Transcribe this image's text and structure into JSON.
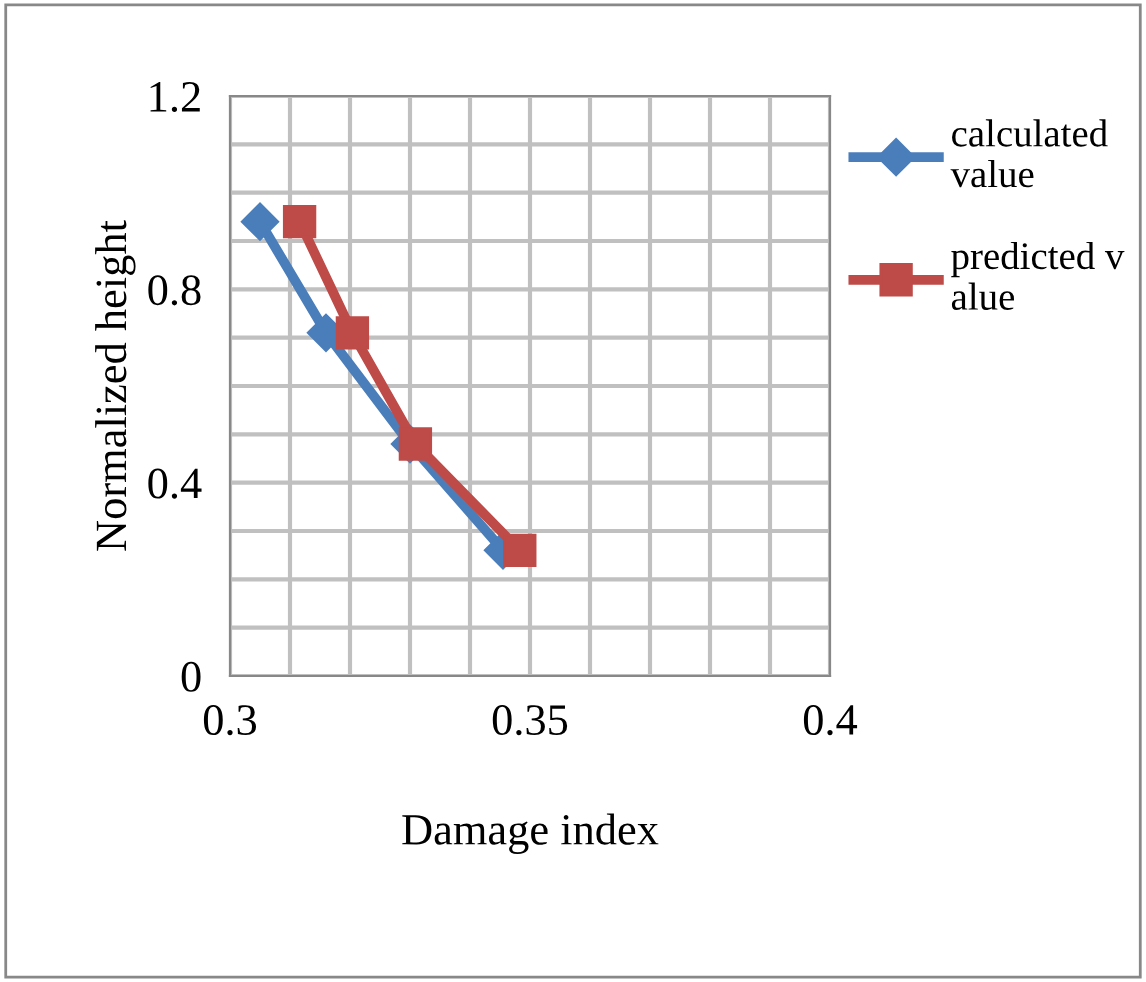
{
  "chart_data": {
    "type": "line",
    "xlabel": "Damage index",
    "ylabel": "Normalized height",
    "xlim": [
      0.3,
      0.4
    ],
    "ylim": [
      0,
      1.2
    ],
    "xticks": [
      0.3,
      {
        "value": 0.31,
        "label": null
      },
      {
        "value": 0.32,
        "label": null
      },
      {
        "value": 0.33,
        "label": null
      },
      {
        "value": 0.34,
        "label": null
      },
      0.35,
      {
        "value": 0.36,
        "label": null
      },
      {
        "value": 0.37,
        "label": null
      },
      {
        "value": 0.38,
        "label": null
      },
      {
        "value": 0.39,
        "label": null
      },
      0.4
    ],
    "yticks": [
      0,
      {
        "value": 0.1,
        "label": null
      },
      {
        "value": 0.2,
        "label": null
      },
      {
        "value": 0.3,
        "label": null
      },
      0.4,
      {
        "value": 0.5,
        "label": null
      },
      {
        "value": 0.6,
        "label": null
      },
      {
        "value": 0.7,
        "label": null
      },
      0.8,
      {
        "value": 0.9,
        "label": null
      },
      {
        "value": 1.0,
        "label": null
      },
      {
        "value": 1.1,
        "label": null
      },
      1.2
    ],
    "grid": true,
    "legend": "right",
    "line_style": "solid",
    "series": [
      {
        "name": "calculated value",
        "color": "#4a7ebb",
        "marker": "diamond",
        "x": [
          0.305,
          0.316,
          0.33,
          0.3455
        ],
        "values": [
          0.94,
          0.71,
          0.48,
          0.26
        ]
      },
      {
        "name": "predicted value",
        "color": "#be4b48",
        "marker": "square",
        "x": [
          0.3116,
          0.3204,
          0.3309,
          0.3483
        ],
        "values": [
          0.94,
          0.71,
          0.48,
          0.26
        ]
      }
    ]
  }
}
